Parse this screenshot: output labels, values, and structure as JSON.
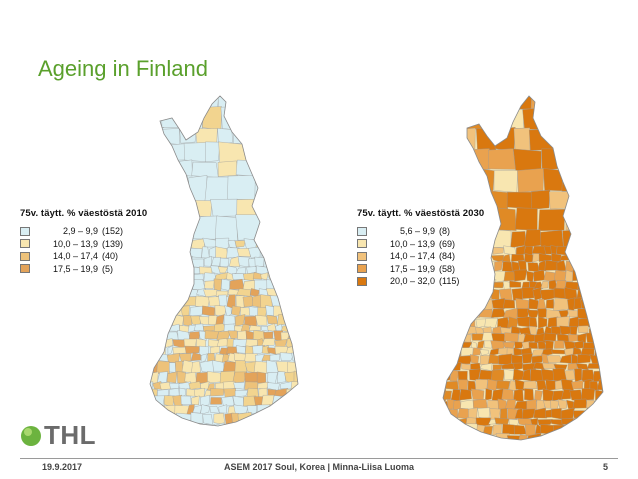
{
  "slide": {
    "title": "Ageing in Finland"
  },
  "maps": [
    {
      "legend_title": "75v. täytt. % väestöstä 2010",
      "classes": [
        {
          "range": "2,9 –  9,9",
          "count": "(152)",
          "color": "#d9eef3"
        },
        {
          "range": "10,0 – 13,9",
          "count": "(139)",
          "color": "#f8e6b0"
        },
        {
          "range": "14,0 – 17,4",
          "count": "(40)",
          "color": "#edc27a"
        },
        {
          "range": "17,5 – 19,9",
          "count": "(5)",
          "color": "#e3a35a"
        }
      ],
      "fill_palette": [
        "#d9eef3",
        "#d9eef3",
        "#f8e6b0",
        "#f8e6b0",
        "#f2d48f",
        "#edc27a",
        "#e3a35a"
      ]
    },
    {
      "legend_title": "75v. täytt. % väestöstä 2030",
      "classes": [
        {
          "range": "5,6 –  9,9",
          "count": "(8)",
          "color": "#d9eef3"
        },
        {
          "range": "10,0 – 13,9",
          "count": "(69)",
          "color": "#f8e6b0"
        },
        {
          "range": "14,0 – 17,4",
          "count": "(84)",
          "color": "#f1c27c"
        },
        {
          "range": "17,5 – 19,9",
          "count": "(58)",
          "color": "#e9a24f"
        },
        {
          "range": "20,0 – 32,0",
          "count": "(115)",
          "color": "#d9780f"
        }
      ],
      "fill_palette": [
        "#f8e6b0",
        "#f1c27c",
        "#e9a24f",
        "#d9780f",
        "#d9780f",
        "#e08a25"
      ]
    }
  ],
  "logo": {
    "text": "THL",
    "colors": {
      "ball": "#6cb33f",
      "ball_light": "#a9d86e"
    }
  },
  "footer": {
    "date": "19.9.2017",
    "center": "ASEM 2017 Soul, Korea | Minna-Liisa Luoma",
    "page": "5"
  }
}
